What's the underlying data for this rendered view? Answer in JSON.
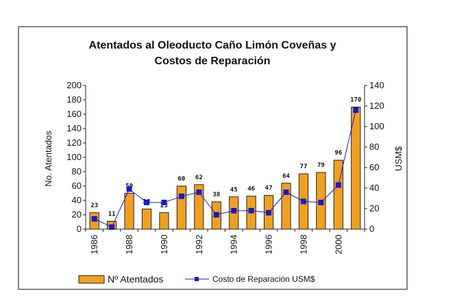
{
  "chart_data": {
    "type": "bar+line",
    "title_lines": [
      "Atentados al Oleoducto Caño Limón Coveñas y",
      "Costos de Reparación"
    ],
    "years": [
      1986,
      1987,
      1988,
      1989,
      1990,
      1991,
      1992,
      1993,
      1994,
      1995,
      1996,
      1997,
      1998,
      1999,
      2000,
      2001
    ],
    "x_tick_labels": [
      "1986",
      "1988",
      "1990",
      "1992",
      "1994",
      "1996",
      "1998",
      "2000"
    ],
    "x_tick_years": [
      1986,
      1988,
      1990,
      1992,
      1994,
      1996,
      1998,
      2000
    ],
    "series": [
      {
        "name": "Nº Atentados",
        "type": "bar",
        "axis": "left",
        "color": "#f0a020",
        "values": [
          23,
          11,
          50,
          28,
          23,
          60,
          62,
          38,
          45,
          46,
          47,
          64,
          77,
          79,
          96,
          170
        ],
        "labels": [
          "23",
          "11",
          "50",
          "28",
          "23",
          "60",
          "62",
          "38",
          "45",
          "46",
          "47",
          "64",
          "77",
          "79",
          "96",
          "170"
        ],
        "labeled": [
          true,
          true,
          true,
          true,
          true,
          true,
          true,
          true,
          true,
          true,
          true,
          true,
          true,
          true,
          true,
          true
        ]
      },
      {
        "name": "Costo de Reparación USM$",
        "type": "line",
        "axis": "right",
        "color": "#1a1acc",
        "values": [
          10,
          2,
          39,
          26,
          26,
          32,
          36,
          14,
          18,
          18,
          16,
          36,
          27,
          26,
          43,
          116
        ]
      }
    ],
    "y_left": {
      "label": "No. Atentados",
      "min": 0,
      "max": 200,
      "ticks": [
        "0",
        "20",
        "40",
        "60",
        "80",
        "100",
        "120",
        "140",
        "160",
        "180",
        "200"
      ]
    },
    "y_right": {
      "label": "USM$",
      "min": 0,
      "max": 140,
      "ticks": [
        "0",
        "20",
        "40",
        "60",
        "80",
        "100",
        "120",
        "140"
      ]
    },
    "legend_position": "bottom",
    "legend": {
      "bar_label": "Nº Atentados",
      "line_label": "Costo de Reparación USM$"
    },
    "grid": false
  }
}
